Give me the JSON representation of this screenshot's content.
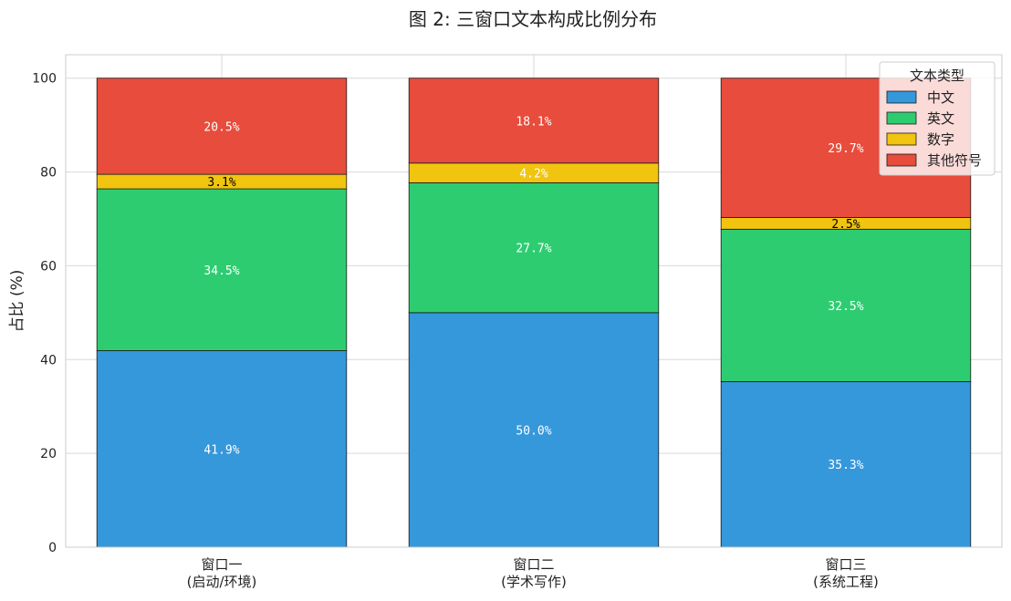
{
  "chart_data": {
    "type": "bar",
    "stacked": true,
    "title": "图 2: 三窗口文本构成比例分布",
    "xlabel": "",
    "ylabel": "占比 (%)",
    "ylim": [
      0,
      105
    ],
    "yticks": [
      0,
      20,
      40,
      60,
      80,
      100
    ],
    "grid": true,
    "legend_title": "文本类型",
    "legend_position": "top-right",
    "categories": [
      [
        "窗口一",
        "(启动/环境)"
      ],
      [
        "窗口二",
        "(学术写作)"
      ],
      [
        "窗口三",
        "(系统工程)"
      ]
    ],
    "series": [
      {
        "name": "中文",
        "color": "#3498db",
        "values": [
          41.9,
          50.0,
          35.3
        ],
        "labels": [
          "41.9%",
          "50.0%",
          "35.3%"
        ],
        "label_color": "#ffffff"
      },
      {
        "name": "英文",
        "color": "#2ecc71",
        "values": [
          34.5,
          27.7,
          32.5
        ],
        "labels": [
          "34.5%",
          "27.7%",
          "32.5%"
        ],
        "label_color": "#ffffff"
      },
      {
        "name": "数字",
        "color": "#f1c40f",
        "values": [
          3.1,
          4.2,
          2.5
        ],
        "labels": [
          "3.1%",
          "4.2%",
          "2.5%"
        ],
        "label_color": [
          "#000000",
          "#ffffff",
          "#000000"
        ]
      },
      {
        "name": "其他符号",
        "color": "#e74c3c",
        "values": [
          20.5,
          18.1,
          29.7
        ],
        "labels": [
          "20.5%",
          "18.1%",
          "29.7%"
        ],
        "label_color": "#ffffff"
      }
    ]
  }
}
